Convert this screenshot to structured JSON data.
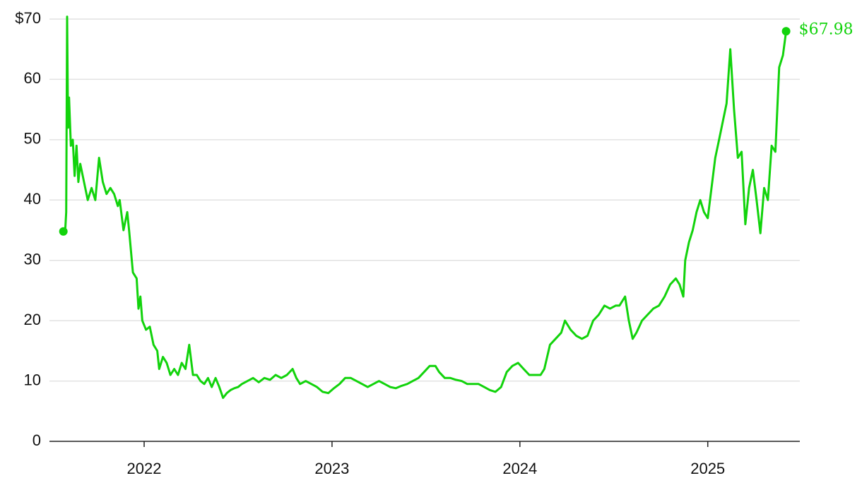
{
  "chart_data": {
    "type": "line",
    "x": [
      2021.57,
      2021.58,
      2021.585,
      2021.59,
      2021.595,
      2021.6,
      2021.61,
      2021.62,
      2021.63,
      2021.64,
      2021.65,
      2021.66,
      2021.68,
      2021.7,
      2021.72,
      2021.74,
      2021.76,
      2021.78,
      2021.8,
      2021.82,
      2021.84,
      2021.86,
      2021.87,
      2021.89,
      2021.91,
      2021.92,
      2021.94,
      2021.96,
      2021.97,
      2021.98,
      2021.99,
      2022.01,
      2022.03,
      2022.05,
      2022.07,
      2022.08,
      2022.1,
      2022.12,
      2022.14,
      2022.16,
      2022.18,
      2022.2,
      2022.22,
      2022.24,
      2022.26,
      2022.28,
      2022.3,
      2022.32,
      2022.34,
      2022.36,
      2022.38,
      2022.4,
      2022.42,
      2022.44,
      2022.46,
      2022.48,
      2022.5,
      2022.52,
      2022.55,
      2022.58,
      2022.61,
      2022.64,
      2022.67,
      2022.7,
      2022.73,
      2022.76,
      2022.79,
      2022.81,
      2022.83,
      2022.86,
      2022.89,
      2022.92,
      2022.95,
      2022.98,
      2023.01,
      2023.04,
      2023.07,
      2023.1,
      2023.13,
      2023.16,
      2023.19,
      2023.22,
      2023.25,
      2023.28,
      2023.31,
      2023.34,
      2023.37,
      2023.4,
      2023.43,
      2023.46,
      2023.49,
      2023.52,
      2023.55,
      2023.57,
      2023.6,
      2023.63,
      2023.66,
      2023.69,
      2023.72,
      2023.75,
      2023.78,
      2023.81,
      2023.84,
      2023.87,
      2023.9,
      2023.93,
      2023.96,
      2023.99,
      2024.02,
      2024.05,
      2024.08,
      2024.11,
      2024.13,
      2024.16,
      2024.19,
      2024.22,
      2024.24,
      2024.27,
      2024.3,
      2024.33,
      2024.36,
      2024.39,
      2024.42,
      2024.45,
      2024.48,
      2024.51,
      2024.53,
      2024.56,
      2024.58,
      2024.6,
      2024.62,
      2024.65,
      2024.68,
      2024.71,
      2024.74,
      2024.77,
      2024.8,
      2024.83,
      2024.85,
      2024.87,
      2024.88,
      2024.9,
      2024.92,
      2024.94,
      2024.96,
      2024.98,
      2025.0,
      2025.02,
      2025.04,
      2025.06,
      2025.08,
      2025.1,
      2025.12,
      2025.14,
      2025.16,
      2025.18,
      2025.2,
      2025.22,
      2025.24,
      2025.26,
      2025.28,
      2025.3,
      2025.32,
      2025.34,
      2025.36,
      2025.38,
      2025.4,
      2025.417
    ],
    "series": [
      {
        "color": "#12d30c",
        "values": [
          34.8,
          35,
          38,
          70.4,
          52,
          57,
          49,
          50,
          44,
          49,
          43,
          46,
          43,
          40,
          42,
          40,
          47,
          43,
          41,
          42,
          41,
          39,
          40,
          35,
          38,
          35,
          28,
          27,
          22,
          24,
          20,
          18.5,
          19,
          16,
          15,
          12,
          14,
          13,
          11,
          12,
          11,
          13,
          12,
          16,
          11,
          11,
          10,
          9.5,
          10.5,
          9,
          10.5,
          9,
          7.2,
          8,
          8.5,
          8.8,
          9,
          9.5,
          10,
          10.5,
          9.8,
          10.5,
          10.2,
          11,
          10.5,
          11,
          12,
          10.5,
          9.5,
          10,
          9.5,
          9,
          8.2,
          8,
          8.8,
          9.5,
          10.5,
          10.5,
          10,
          9.5,
          9,
          9.5,
          10,
          9.5,
          9,
          8.8,
          9.2,
          9.5,
          10,
          10.5,
          11.5,
          12.5,
          12.5,
          11.5,
          10.5,
          10.5,
          10.2,
          10,
          9.5,
          9.5,
          9.5,
          9,
          8.5,
          8.2,
          9,
          11.5,
          12.5,
          13,
          12,
          11,
          11,
          11,
          12,
          16,
          17,
          18,
          20,
          18.5,
          17.5,
          17,
          17.5,
          20,
          21,
          22.5,
          22,
          22.5,
          22.5,
          24,
          20,
          17,
          18,
          20,
          21,
          22,
          22.5,
          24,
          26,
          27,
          26,
          24,
          30,
          33,
          35,
          38,
          40,
          38,
          37,
          42,
          47,
          50,
          53,
          56,
          65,
          55,
          47,
          48,
          36,
          42,
          45,
          40,
          34.5,
          42,
          40,
          49,
          48,
          62,
          64,
          67.98
        ]
      }
    ],
    "annotations": [
      {
        "text": "$67.98",
        "x": 2025.417,
        "y": 67.98
      }
    ],
    "xlim": [
      2021.496,
      2025.49
    ],
    "xticks": [
      2022,
      2023,
      2024,
      2025
    ],
    "ylim": [
      0,
      70
    ],
    "yticks": [
      0,
      10,
      20,
      30,
      40,
      50,
      60,
      {
        "value": 70,
        "label": "$70"
      }
    ],
    "grid": true
  }
}
